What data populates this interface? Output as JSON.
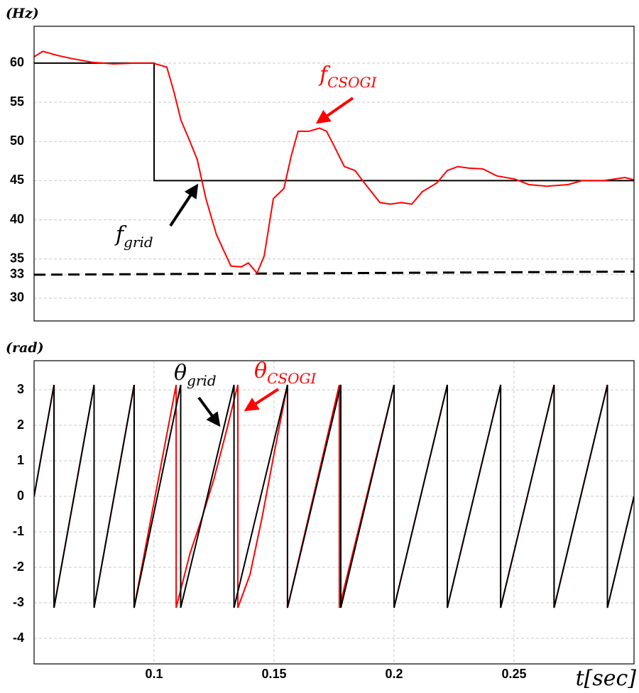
{
  "chart_data": [
    {
      "type": "line",
      "y_label": "(Hz)",
      "xlim": [
        0.05,
        0.3
      ],
      "ylim": [
        27.1,
        64.7
      ],
      "yticks": [
        30,
        33,
        35,
        40,
        45,
        50,
        55,
        60
      ],
      "grid": true,
      "series": [
        {
          "color": "#000000",
          "linestyle": "solid",
          "x": [
            0.05,
            0.1,
            0.1,
            0.3
          ],
          "values": [
            60,
            60,
            45,
            45
          ]
        },
        {
          "color": "#000000",
          "linestyle": "dashed",
          "x": [
            0.05,
            0.3
          ],
          "values": [
            33.0,
            33.4
          ]
        },
        {
          "color": "#ff0000",
          "linestyle": "solid",
          "x": [
            0.05,
            0.0536,
            0.0595,
            0.0654,
            0.0743,
            0.0831,
            0.092,
            0.0994,
            0.1053,
            0.1083,
            0.1112,
            0.1151,
            0.118,
            0.1216,
            0.126,
            0.132,
            0.1364,
            0.1393,
            0.1429,
            0.1459,
            0.1497,
            0.1541,
            0.1571,
            0.16,
            0.1645,
            0.169,
            0.1719,
            0.1749,
            0.1793,
            0.1837,
            0.1882,
            0.1941,
            0.1985,
            0.203,
            0.2074,
            0.2118,
            0.2178,
            0.2222,
            0.2266,
            0.2311,
            0.237,
            0.2429,
            0.2503,
            0.2562,
            0.2636,
            0.2725,
            0.2784,
            0.2873,
            0.2962,
            0.3
          ],
          "values": [
            60.8,
            61.5,
            61.0,
            60.6,
            60.1,
            59.9,
            60.0,
            60.0,
            59.5,
            56.3,
            52.7,
            49.9,
            47.7,
            42.7,
            38.1,
            34.1,
            34.0,
            34.5,
            33.2,
            35.4,
            42.7,
            44.0,
            48.1,
            51.3,
            51.3,
            51.7,
            51.3,
            49.5,
            46.8,
            46.3,
            44.5,
            42.2,
            42.0,
            42.2,
            42.0,
            43.6,
            44.7,
            46.3,
            46.8,
            46.6,
            46.5,
            45.6,
            45.2,
            44.5,
            44.3,
            44.5,
            45.0,
            45.0,
            45.4,
            45.1
          ]
        }
      ],
      "annotations": [
        {
          "text": "f",
          "sub": "CSOGI",
          "color": "#ff0000"
        },
        {
          "text": "f",
          "sub": "grid",
          "color": "#000000"
        }
      ]
    },
    {
      "type": "line",
      "y_label": "(rad)",
      "x_label": "t[sec]",
      "xlim": [
        0.05,
        0.3
      ],
      "ylim": [
        -4.72,
        3.82
      ],
      "xticks": [
        0.1,
        0.15,
        0.2,
        0.25
      ],
      "yticks": [
        -4,
        -3,
        -2,
        -1,
        0,
        1,
        2,
        3
      ],
      "grid": true,
      "series": [
        {
          "color": "#ff0000",
          "linestyle": "solid",
          "x": [
            0.05,
            0.0583,
            0.0583,
            0.075,
            0.075,
            0.0917,
            0.0917,
            0.1092,
            0.1092,
            0.115,
            0.12,
            0.125,
            0.13,
            0.1349,
            0.1349,
            0.14,
            0.145,
            0.15,
            0.1556,
            0.1556,
            0.1772,
            0.1772,
            0.2,
            0.2,
            0.2222,
            0.2222,
            0.2444,
            0.2444,
            0.2667,
            0.2667,
            0.2889,
            0.2889,
            0.3
          ],
          "values": [
            0,
            3.14,
            -3.14,
            3.14,
            -3.14,
            3.14,
            -3.14,
            3.14,
            -3.14,
            -1.6,
            -0.6,
            0.5,
            1.8,
            3.14,
            -3.14,
            -2.2,
            -0.6,
            1.2,
            3.14,
            -3.14,
            3.14,
            -3.14,
            3.14,
            -3.14,
            3.14,
            -3.14,
            3.14,
            -3.14,
            3.14,
            -3.14,
            3.14,
            -3.14,
            0
          ]
        },
        {
          "color": "#000000",
          "linestyle": "solid",
          "x": [
            0.05,
            0.0583,
            0.0583,
            0.075,
            0.075,
            0.0917,
            0.0917,
            0.1111,
            0.1111,
            0.1333,
            0.1333,
            0.1556,
            0.1556,
            0.1778,
            0.1778,
            0.2,
            0.2,
            0.2222,
            0.2222,
            0.2444,
            0.2444,
            0.2667,
            0.2667,
            0.2889,
            0.2889,
            0.3
          ],
          "values": [
            0,
            3.14,
            -3.14,
            3.14,
            -3.14,
            3.14,
            -3.14,
            3.14,
            -3.14,
            3.14,
            -3.14,
            3.14,
            -3.14,
            3.14,
            -3.14,
            3.14,
            -3.14,
            3.14,
            -3.14,
            3.14,
            -3.14,
            3.14,
            -3.14,
            3.14,
            -3.14,
            0
          ]
        }
      ],
      "annotations": [
        {
          "text": "θ",
          "sub": "grid",
          "color": "#000000"
        },
        {
          "text": "θ",
          "sub": "CSOGI",
          "color": "#ff0000"
        }
      ]
    }
  ]
}
